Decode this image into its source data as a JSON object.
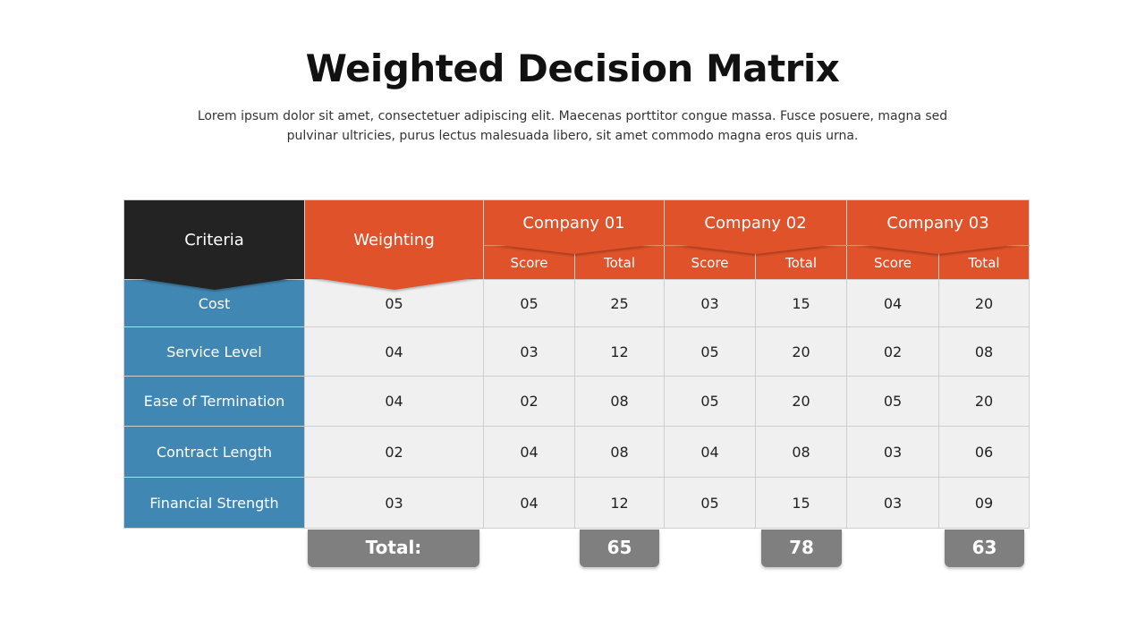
{
  "title": "Weighted Decision Matrix",
  "subtitle": "Lorem ipsum dolor sit amet, consectetuer adipiscing elit. Maecenas porttitor congue massa. Fusce posuere, magna sed pulvinar ultricies, purus lectus malesuada libero, sit amet commodo magna eros quis urna.",
  "colors": {
    "dark": "#232323",
    "orange": "#e0522a",
    "blue": "#4187b3",
    "cell": "#f0f0f0",
    "total": "#7f7f7f"
  },
  "table": {
    "criteria_header": "Criteria",
    "weighting_header": "Weighting",
    "companies": [
      {
        "name": "Company 01",
        "score_label": "Score",
        "total_label": "Total"
      },
      {
        "name": "Company 02",
        "score_label": "Score",
        "total_label": "Total"
      },
      {
        "name": "Company 03",
        "score_label": "Score",
        "total_label": "Total"
      }
    ],
    "rows": [
      {
        "criterion": "Cost",
        "weight": "05",
        "values": [
          "05",
          "25",
          "03",
          "15",
          "04",
          "20"
        ]
      },
      {
        "criterion": "Service Level",
        "weight": "04",
        "values": [
          "03",
          "12",
          "05",
          "20",
          "02",
          "08"
        ]
      },
      {
        "criterion": "Ease of Termination",
        "weight": "04",
        "values": [
          "02",
          "08",
          "05",
          "20",
          "05",
          "20"
        ]
      },
      {
        "criterion": "Contract Length",
        "weight": "02",
        "values": [
          "04",
          "08",
          "04",
          "08",
          "03",
          "06"
        ]
      },
      {
        "criterion": "Financial Strength",
        "weight": "03",
        "values": [
          "04",
          "12",
          "05",
          "15",
          "03",
          "09"
        ]
      }
    ]
  },
  "totals": {
    "label": "Total:",
    "company_totals": [
      "65",
      "78",
      "63"
    ]
  }
}
